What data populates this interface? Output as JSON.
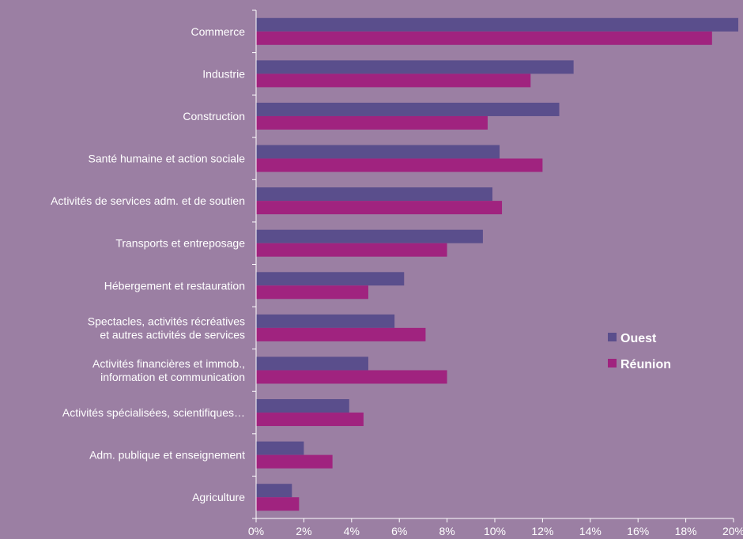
{
  "chart_data": {
    "type": "bar",
    "orientation": "horizontal",
    "categories": [
      [
        "Commerce"
      ],
      [
        "Industrie"
      ],
      [
        "Construction"
      ],
      [
        "Santé humaine et action sociale"
      ],
      [
        "Activités de services adm. et de soutien"
      ],
      [
        "Transports et entreposage"
      ],
      [
        "Hébergement et restauration"
      ],
      [
        "Spectacles, activités récréatives",
        "et autres activités de services"
      ],
      [
        "Activités financières et immob.,",
        "information et communication"
      ],
      [
        "Activités spécialisées, scientifiques…"
      ],
      [
        "Adm. publique et enseignement"
      ],
      [
        "Agriculture"
      ]
    ],
    "series": [
      {
        "name": "Ouest",
        "color": "#5a4e8c",
        "values": [
          20.2,
          13.3,
          12.7,
          10.2,
          9.9,
          9.5,
          6.2,
          5.8,
          4.7,
          3.9,
          2.0,
          1.5
        ]
      },
      {
        "name": "Réunion",
        "color": "#a0237f",
        "values": [
          19.1,
          11.5,
          9.7,
          12.0,
          10.3,
          8.0,
          4.7,
          7.1,
          8.0,
          4.5,
          3.2,
          1.8
        ]
      }
    ],
    "xlim": [
      0,
      20
    ],
    "x_ticks": [
      "0%",
      "2%",
      "4%",
      "6%",
      "8%",
      "10%",
      "12%",
      "14%",
      "16%",
      "18%",
      "20%"
    ],
    "grid": false,
    "legend_position": "right"
  }
}
